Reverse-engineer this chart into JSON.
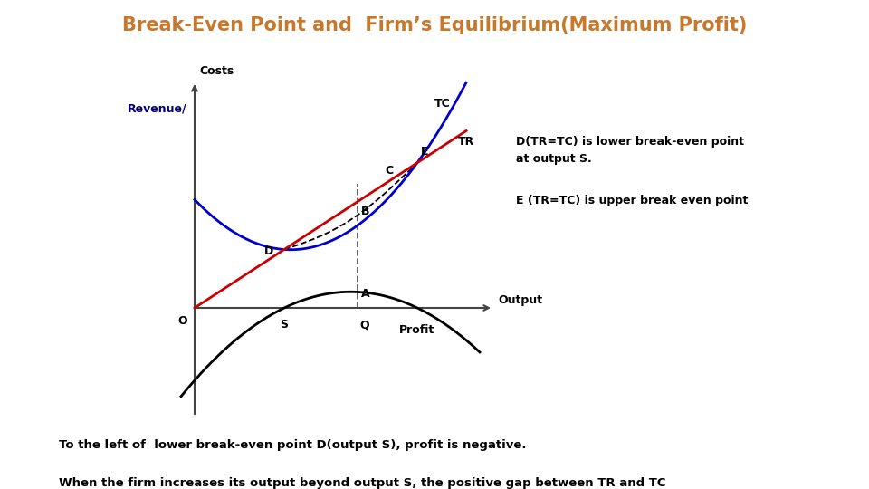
{
  "title": "Break-Even Point and  Firm’s Equilibrium(Maximum Profit)",
  "title_color": "#C8782A",
  "title_fontsize": 15,
  "revenue_label": "Revenue/",
  "costs_label": "Costs",
  "output_label": "Output",
  "profit_label": "Profit",
  "tc_label": "TC",
  "tr_label": "TR",
  "annotation1": "D(TR=TC) is lower break-even point\nat output S.",
  "annotation2": "E (TR=TC) is upper break even point",
  "bottom_text1": "To the left of  lower break-even point D(output S), profit is negative.",
  "bottom_text2": "When the firm increases its output beyond output S, the positive gap between TR and TC\nincrease and profit  accrue to the firm.",
  "bg_color": "#ffffff",
  "tc_color": "#0000cc",
  "tr_color": "#cc0000",
  "profit_curve_color": "#000000",
  "axis_color": "#444444",
  "dashed_color": "#555555",
  "revenue_color": "#000080"
}
